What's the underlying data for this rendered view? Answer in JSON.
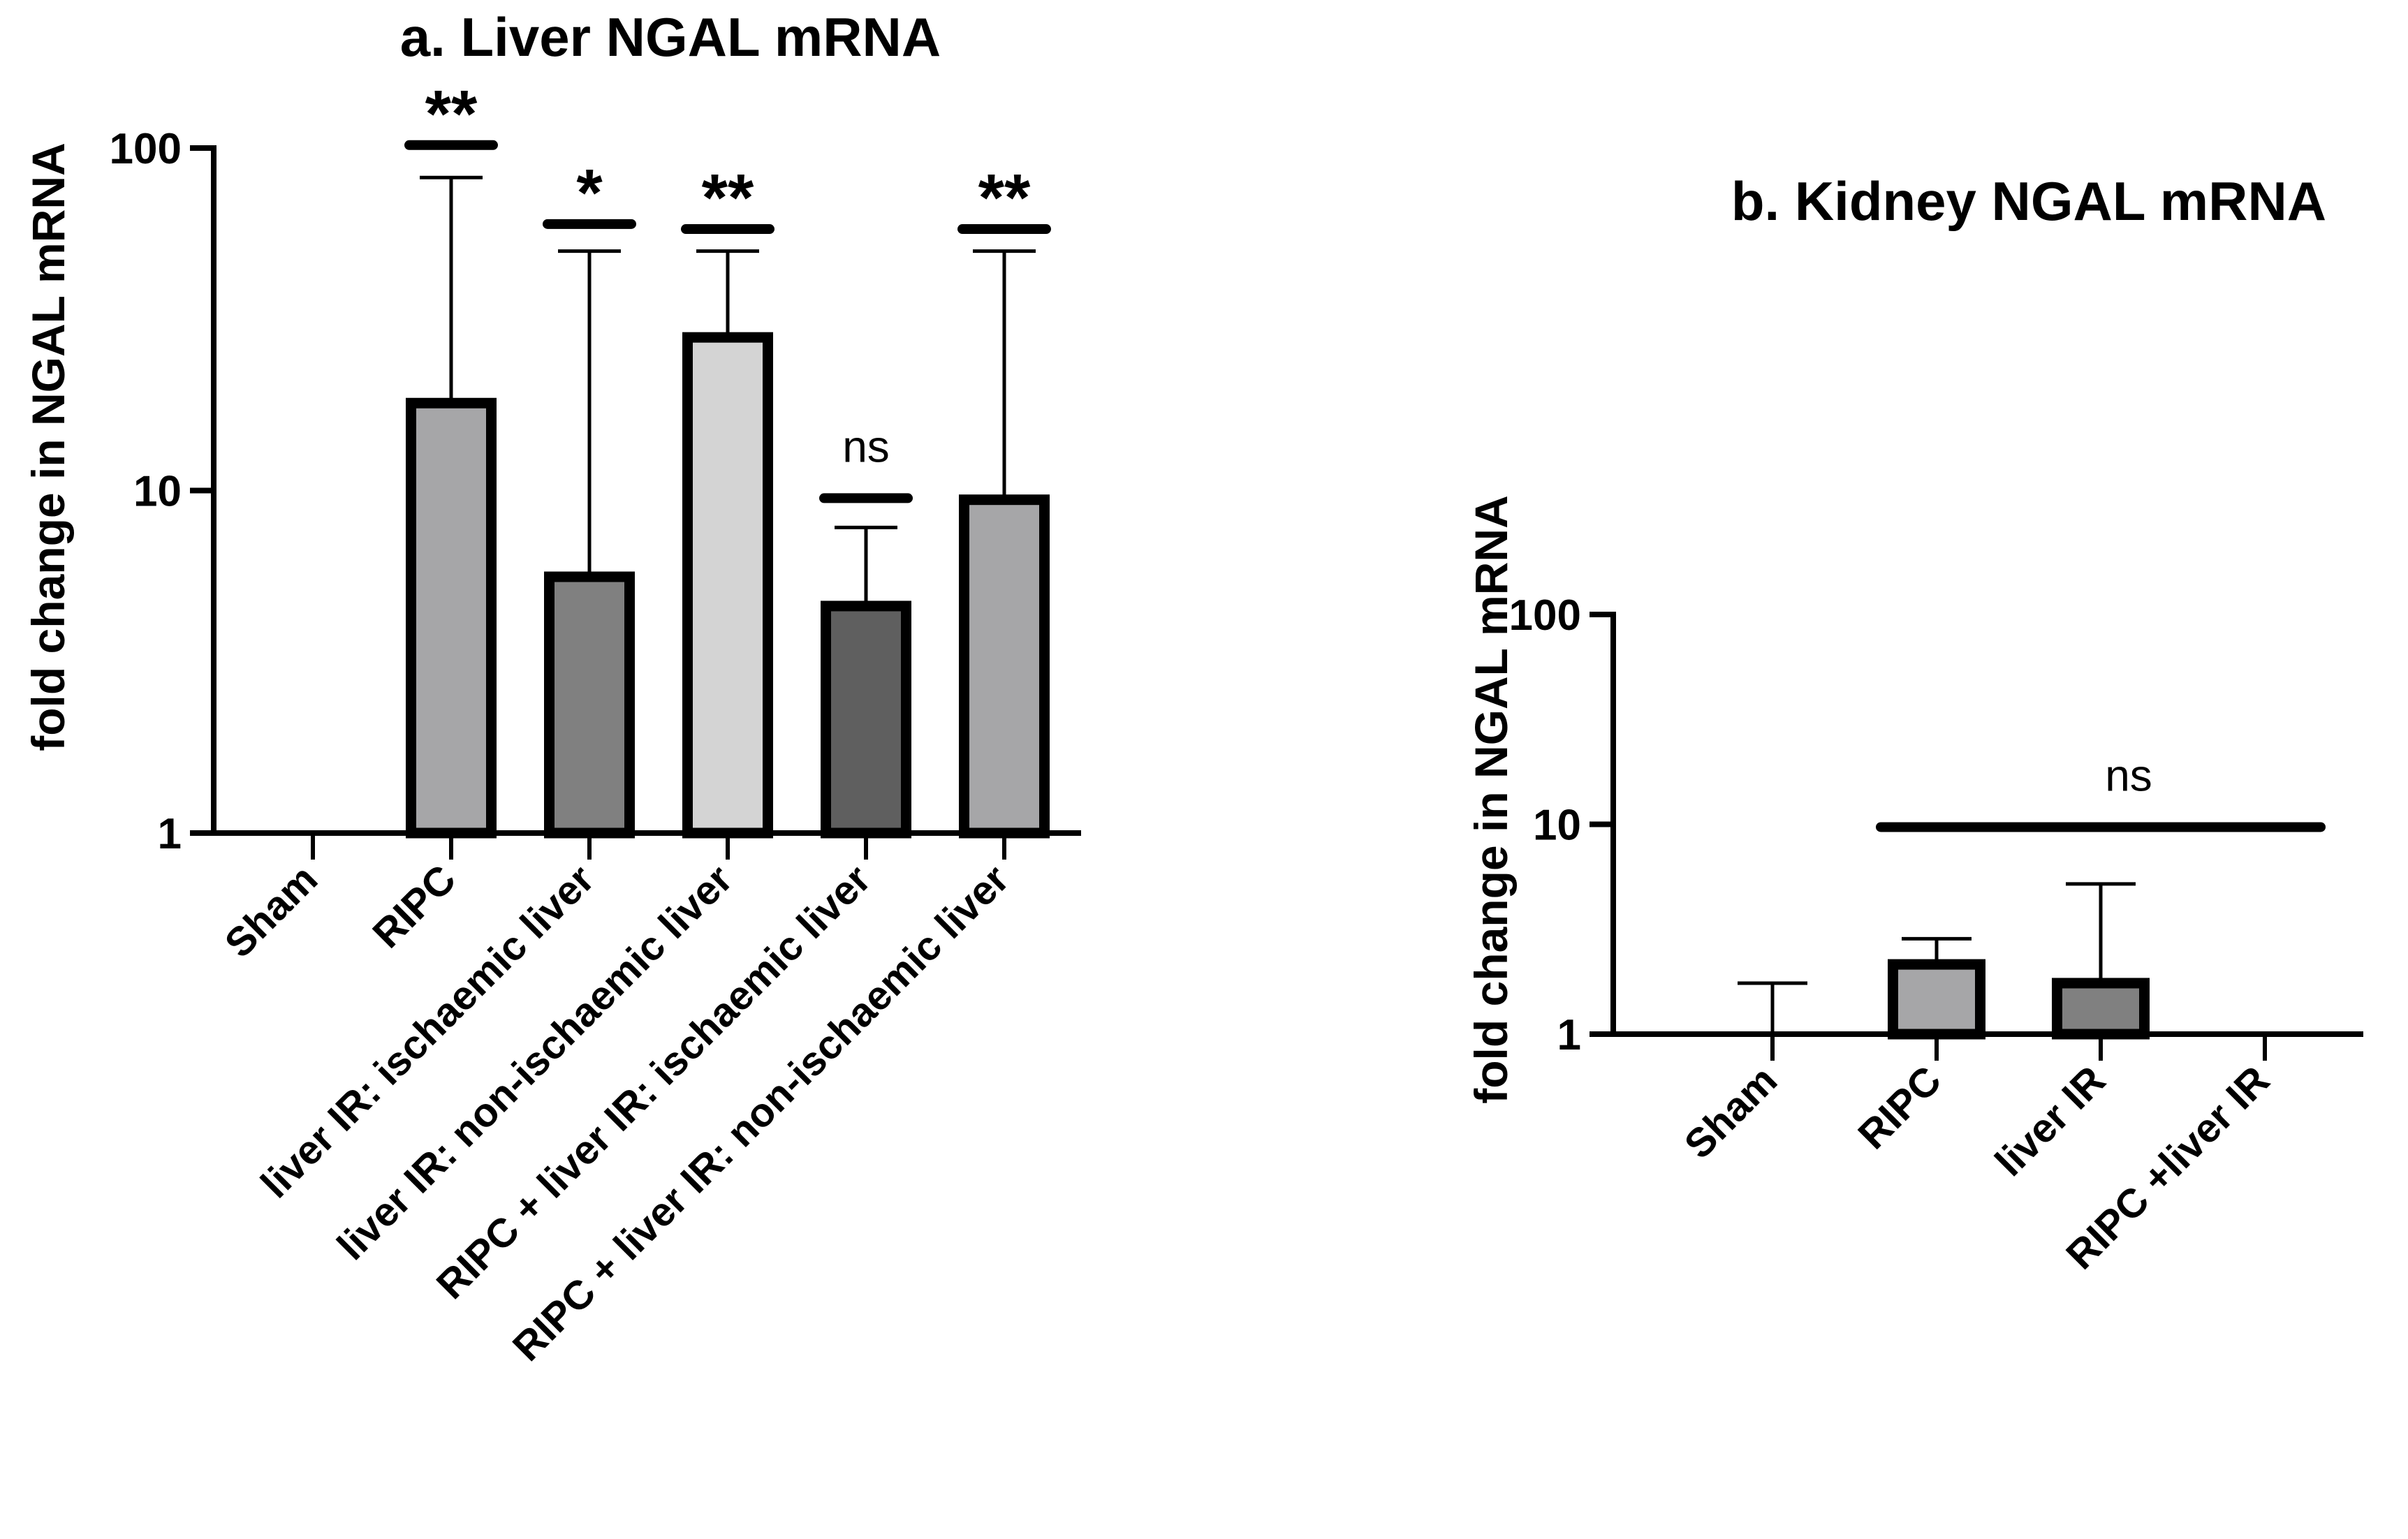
{
  "chart_data": [
    {
      "type": "bar",
      "title": "a. Liver NGAL mRNA",
      "ylabel": "fold change in NGAL mRNA",
      "xlabel": "",
      "yscale": "log",
      "ylim": [
        1,
        100
      ],
      "yticks": [
        "1",
        "10",
        "100"
      ],
      "categories": [
        "Sham",
        "RIPC",
        "liver IR: ischaemic liver",
        "liver IR: non-ischaemic liver",
        "RIPC + liver IR: ischaemic liver",
        "RIPC + liver IR: non-ischaemic liver"
      ],
      "values": [
        1,
        18,
        5.6,
        28,
        4.6,
        9.4
      ],
      "error_upper": [
        1,
        82,
        50,
        50,
        7.8,
        50
      ],
      "colors": [
        "#a6a6a6",
        "#a6a6a8",
        "#808080",
        "#d4d4d4",
        "#5f5f5f",
        "#a6a6a8"
      ],
      "significance": [
        {
          "label": "",
          "bar_y": null
        },
        {
          "label": "**",
          "bar_y": 102
        },
        {
          "label": "*",
          "bar_y": 60
        },
        {
          "label": "**",
          "bar_y": 58
        },
        {
          "label": "ns",
          "bar_y": 9.5
        },
        {
          "label": "**",
          "bar_y": 58
        }
      ]
    },
    {
      "type": "bar",
      "title": "b. Kidney NGAL mRNA",
      "ylabel": "fold change in NGAL mRNA",
      "xlabel": "",
      "yscale": "log",
      "ylim": [
        1,
        100
      ],
      "yticks": [
        "1",
        "10",
        "100"
      ],
      "categories": [
        "Sham",
        "RIPC",
        "liver IR",
        "RIPC +liver IR"
      ],
      "values": [
        1,
        2.15,
        1.75,
        1
      ],
      "error_upper": [
        1.75,
        2.85,
        5.2,
        1
      ],
      "colors": [
        "#a6a6a6",
        "#a6a6a8",
        "#808080",
        "#a6a6a8"
      ],
      "significance_line": {
        "label": "ns",
        "from": 1,
        "to": 3,
        "y": 9.7
      }
    }
  ]
}
